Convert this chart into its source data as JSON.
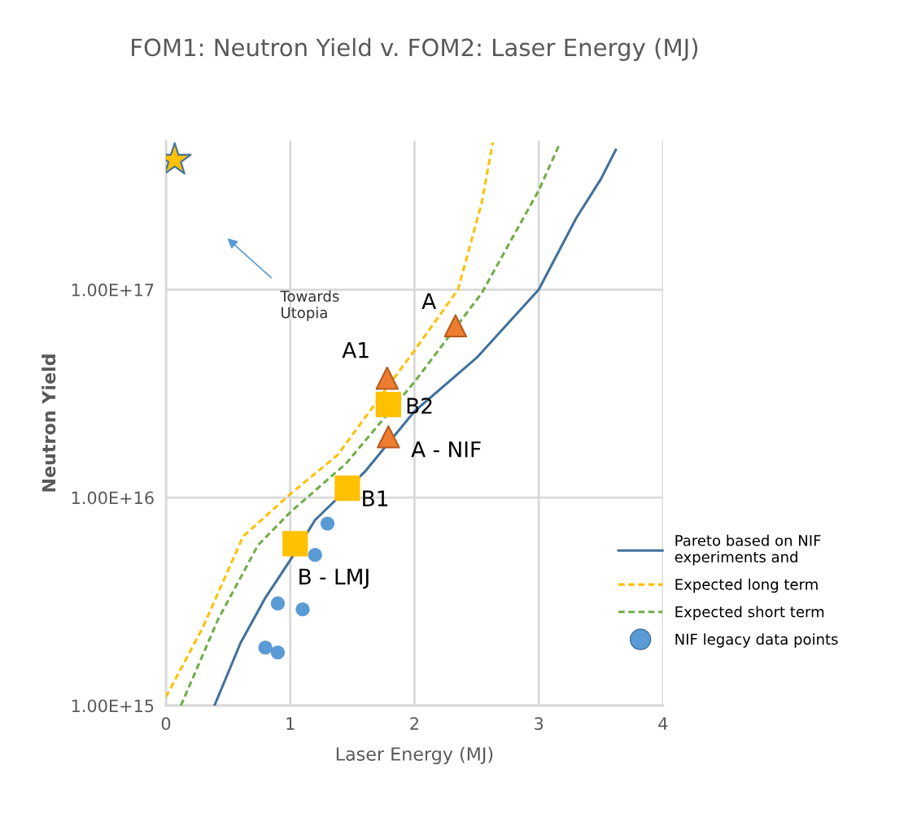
{
  "chart_data": {
    "type": "line",
    "title": "FOM1: Neutron Yield v. FOM2: Laser Energy (MJ)",
    "xlabel": "Laser Energy (MJ)",
    "ylabel": "Neutron Yield",
    "log": "y",
    "xlim": [
      0,
      4
    ],
    "xticks": [
      0,
      1,
      2,
      3,
      4
    ],
    "ylim": [
      1000000000000000.0,
      5.2e+17
    ],
    "yticks": [
      {
        "value": 1000000000000000.0,
        "label": "1.00E+15"
      },
      {
        "value": 1e+16,
        "label": "1.00E+16"
      },
      {
        "value": 1e+17,
        "label": "1.00E+17"
      }
    ],
    "grid": true,
    "legend": "right",
    "series": [
      {
        "name": "Pareto based on NIF\nexperiments and",
        "color": "#41719c",
        "line_style": "solid",
        "marker": "none",
        "x": [
          0.39,
          0.6,
          0.8,
          1.0,
          1.2,
          1.6,
          2.0,
          2.5,
          3.0,
          3.3,
          3.5,
          3.62
        ],
        "values": [
          1000000000000000.0,
          2000000000000000.0,
          3300000000000000.0,
          5000000000000000.0,
          7800000000000000.0,
          1.33e+16,
          2.6e+16,
          4.7e+16,
          1e+17,
          2.2e+17,
          3.4e+17,
          4.7e+17
        ]
      },
      {
        "name": "Expected long term",
        "color": "#ffc000",
        "line_style": "dashed",
        "marker": "none",
        "x": [
          0.0,
          0.3,
          0.62,
          1.0,
          1.38,
          2.0,
          2.35,
          2.54,
          2.63
        ],
        "values": [
          1100000000000000.0,
          2400000000000000.0,
          6500000000000000.0,
          1.04e+16,
          1.6e+16,
          5.1e+16,
          1e+17,
          2.6e+17,
          5.1e+17
        ]
      },
      {
        "name": "Expected short term",
        "color": "#70ad47",
        "line_style": "dashed",
        "marker": "none",
        "x": [
          0.12,
          0.42,
          0.74,
          1.0,
          1.45,
          2.0,
          2.54,
          3.0,
          3.16
        ],
        "values": [
          1000000000000000.0,
          2600000000000000.0,
          5900000000000000.0,
          8500000000000000.0,
          1.46e+16,
          3.6e+16,
          9.6e+16,
          3e+17,
          4.9e+17
        ]
      },
      {
        "name": "NIF legacy data points",
        "type": "scatter",
        "color": "#5b9bd5",
        "marker": "circle",
        "x": [
          1.3,
          1.2,
          0.9,
          1.1,
          0.8,
          0.9
        ],
        "values": [
          7500000000000000.0,
          5300000000000000.0,
          3100000000000000.0,
          2900000000000000.0,
          1900000000000000.0,
          1800000000000000.0
        ]
      },
      {
        "type": "scatter",
        "color": "#ed7d31",
        "marker": "triangle",
        "x": [
          2.33,
          1.78,
          1.79
        ],
        "values": [
          6.7e+16,
          3.75e+16,
          1.96e+16
        ]
      },
      {
        "type": "scatter",
        "color": "#ffc000",
        "marker": "square",
        "x": [
          1.79,
          1.46,
          1.04
        ],
        "values": [
          2.8e+16,
          1.11e+16,
          6000000000000000.0
        ]
      },
      {
        "type": "scatter",
        "color": "#ffc000",
        "marker": "star",
        "x": [
          0.07
        ],
        "values": [
          4.2e+17
        ]
      }
    ],
    "annotations": [
      {
        "text": "A",
        "x": 2.33,
        "y": 6.7e+16
      },
      {
        "text": "A1",
        "x": 1.78,
        "y": 3.75e+16
      },
      {
        "text": "B2",
        "x": 1.79,
        "y": 2.8e+16
      },
      {
        "text": "A - NIF",
        "x": 1.79,
        "y": 1.96e+16
      },
      {
        "text": "B1",
        "x": 1.46,
        "y": 1.11e+16
      },
      {
        "text": "B - LMJ",
        "x": 1.04,
        "y": 6000000000000000.0
      },
      "Towards\nUtopia"
    ]
  }
}
